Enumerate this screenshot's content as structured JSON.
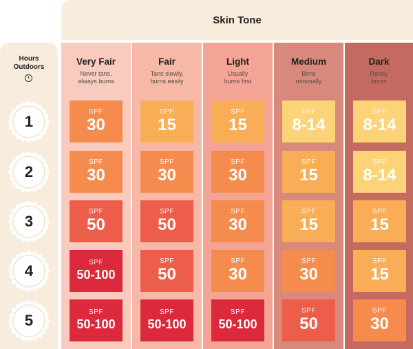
{
  "header": {
    "title": "Skin Tone"
  },
  "hours": {
    "label_line1": "Hours",
    "label_line2": "Outdoors",
    "icon": "clock-icon",
    "rows": [
      "1",
      "2",
      "3",
      "4",
      "5"
    ]
  },
  "spf_label": "SPF",
  "tones": [
    {
      "name": "Very Fair",
      "desc": "Never tans,\nalways burns",
      "bg": "#f9cbbf"
    },
    {
      "name": "Fair",
      "desc": "Tans slowly,\nburns easily",
      "bg": "#f7b8a8"
    },
    {
      "name": "Light",
      "desc": "Usually\nburns first",
      "bg": "#f3a494"
    },
    {
      "name": "Medium",
      "desc": "Birns\nminimally",
      "bg": "#d8897b"
    },
    {
      "name": "Dark",
      "desc": "Rarely\nburns",
      "bg": "#c56a60"
    }
  ],
  "spf_table": [
    [
      "30",
      "15",
      "15",
      "8-14",
      "8-14"
    ],
    [
      "30",
      "30",
      "30",
      "15",
      "8-14"
    ],
    [
      "50",
      "50",
      "30",
      "15",
      "15"
    ],
    [
      "50-100",
      "50",
      "30",
      "30",
      "15"
    ],
    [
      "50-100",
      "50-100",
      "50-100",
      "50",
      "30"
    ]
  ],
  "spf_colors": {
    "8-14": "#fcd377",
    "15": "#f9ad57",
    "30": "#f58c4d",
    "50": "#ec5e4a",
    "50-100": "#dc2a3c"
  }
}
